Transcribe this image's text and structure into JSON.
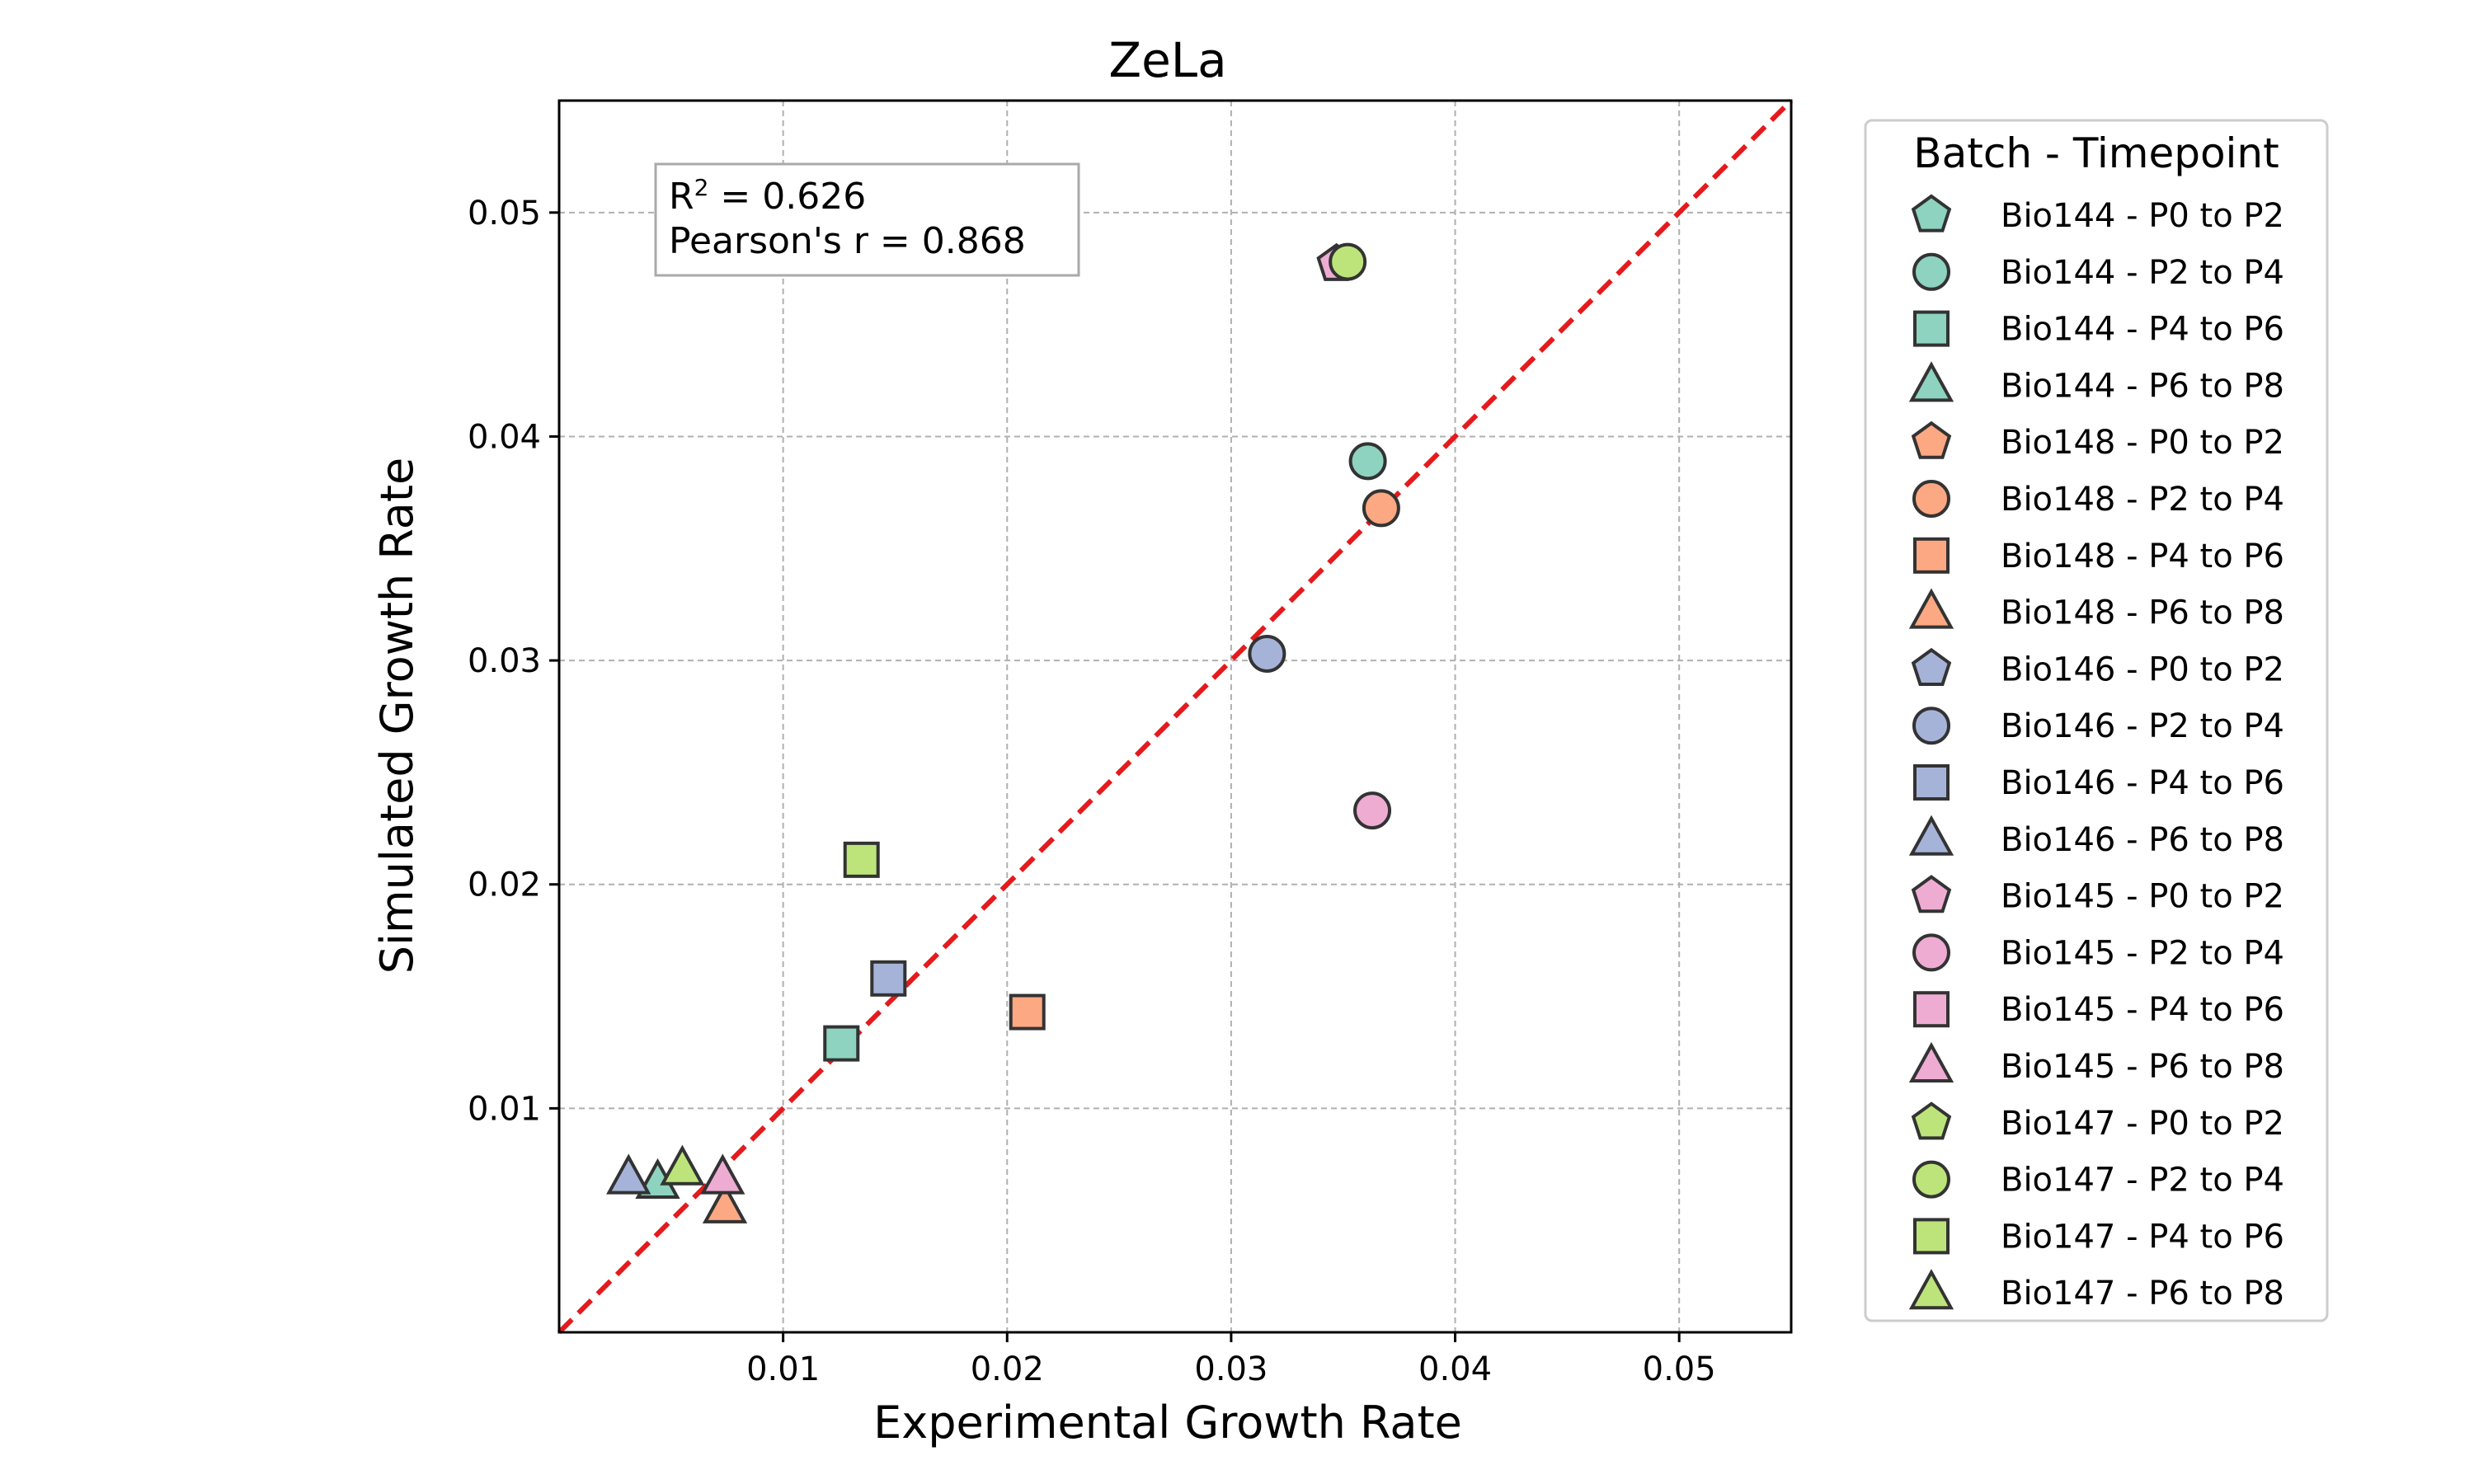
{
  "chart_data": {
    "type": "scatter",
    "title": "ZeLa",
    "xlabel": "Experimental Growth Rate",
    "ylabel": "Simulated Growth Rate",
    "xlim": [
      0.0,
      0.055
    ],
    "ylim": [
      0.0,
      0.055
    ],
    "xticks": [
      "0.01",
      "0.02",
      "0.03",
      "0.04",
      "0.05"
    ],
    "yticks": [
      "0.01",
      "0.02",
      "0.03",
      "0.04",
      "0.05"
    ],
    "grid": true,
    "reference_line": "y = x",
    "reference_line_color": "#e41a1c",
    "stats": {
      "r2_prefix": "R",
      "r2_sup": "2",
      "r2_value": " = 0.626",
      "pearson": "Pearson's r = 0.868"
    },
    "legend": {
      "title": "Batch - Timepoint",
      "placement": "outside-right"
    },
    "batch_colors": {
      "Bio144": "#8dd3c0",
      "Bio148": "#fca882",
      "Bio146": "#a6b3d9",
      "Bio145": "#eeacd3",
      "Bio147": "#bde47a"
    },
    "series": [
      {
        "name": "Bio144 - P0 to P2",
        "batch": "Bio144",
        "marker": "pentagon",
        "points": []
      },
      {
        "name": "Bio144 - P2 to P4",
        "batch": "Bio144",
        "marker": "circle",
        "points": [
          [
            0.0361,
            0.0389
          ]
        ]
      },
      {
        "name": "Bio144 - P4 to P6",
        "batch": "Bio144",
        "marker": "square",
        "points": [
          [
            0.0126,
            0.0129
          ]
        ]
      },
      {
        "name": "Bio144 - P6 to P8",
        "batch": "Bio144",
        "marker": "triangle",
        "points": [
          [
            0.0044,
            0.0067
          ]
        ]
      },
      {
        "name": "Bio148 - P0 to P2",
        "batch": "Bio148",
        "marker": "pentagon",
        "points": []
      },
      {
        "name": "Bio148 - P2 to P4",
        "batch": "Bio148",
        "marker": "circle",
        "points": [
          [
            0.0367,
            0.0368
          ]
        ]
      },
      {
        "name": "Bio148 - P4 to P6",
        "batch": "Bio148",
        "marker": "square",
        "points": [
          [
            0.0209,
            0.0143
          ]
        ]
      },
      {
        "name": "Bio148 - P6 to P8",
        "batch": "Bio148",
        "marker": "triangle",
        "points": [
          [
            0.0074,
            0.0056
          ]
        ]
      },
      {
        "name": "Bio146 - P0 to P2",
        "batch": "Bio146",
        "marker": "pentagon",
        "points": []
      },
      {
        "name": "Bio146 - P2 to P4",
        "batch": "Bio146",
        "marker": "circle",
        "points": [
          [
            0.0316,
            0.0303
          ]
        ]
      },
      {
        "name": "Bio146 - P4 to P6",
        "batch": "Bio146",
        "marker": "square",
        "points": [
          [
            0.0147,
            0.0158
          ]
        ]
      },
      {
        "name": "Bio146 - P6 to P8",
        "batch": "Bio146",
        "marker": "triangle",
        "points": [
          [
            0.0031,
            0.0069
          ]
        ]
      },
      {
        "name": "Bio145 - P0 to P2",
        "batch": "Bio145",
        "marker": "pentagon",
        "points": [
          [
            0.0347,
            0.0477
          ]
        ]
      },
      {
        "name": "Bio145 - P2 to P4",
        "batch": "Bio145",
        "marker": "circle",
        "points": [
          [
            0.0363,
            0.0233
          ]
        ]
      },
      {
        "name": "Bio145 - P4 to P6",
        "batch": "Bio145",
        "marker": "square",
        "points": []
      },
      {
        "name": "Bio145 - P6 to P8",
        "batch": "Bio145",
        "marker": "triangle",
        "points": [
          [
            0.0073,
            0.0069
          ]
        ]
      },
      {
        "name": "Bio147 - P0 to P2",
        "batch": "Bio147",
        "marker": "pentagon",
        "points": []
      },
      {
        "name": "Bio147 - P2 to P4",
        "batch": "Bio147",
        "marker": "circle",
        "points": [
          [
            0.0352,
            0.0478
          ]
        ]
      },
      {
        "name": "Bio147 - P4 to P6",
        "batch": "Bio147",
        "marker": "square",
        "points": [
          [
            0.0135,
            0.0211
          ]
        ]
      },
      {
        "name": "Bio147 - P6 to P8",
        "batch": "Bio147",
        "marker": "triangle",
        "points": [
          [
            0.0055,
            0.0073
          ]
        ]
      }
    ]
  }
}
